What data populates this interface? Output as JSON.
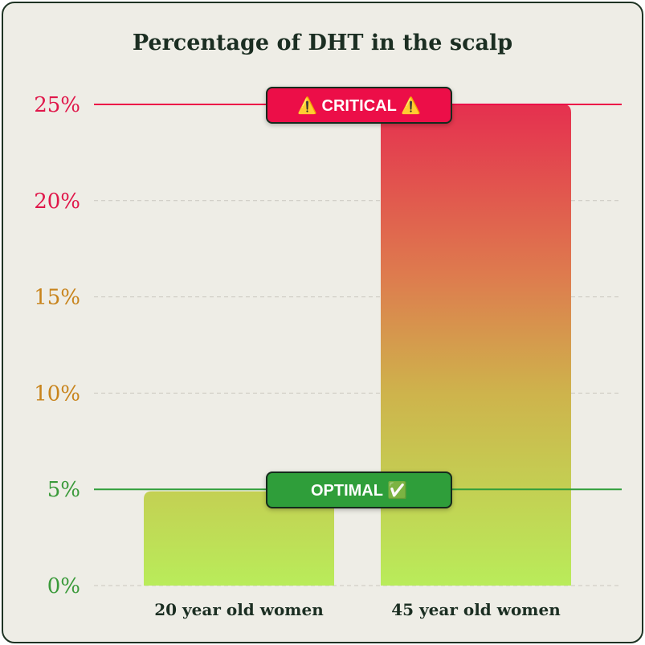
{
  "chart_data": {
    "type": "bar",
    "title": "Percentage of DHT in the scalp",
    "categories": [
      "20 year old women",
      "45 year old women"
    ],
    "values": [
      4.9,
      25
    ],
    "ylim": [
      0,
      25
    ],
    "yticks": [
      {
        "value": 0,
        "label": "0%",
        "color": "#3a9a3a"
      },
      {
        "value": 5,
        "label": "5%",
        "color": "#3a9a3a"
      },
      {
        "value": 10,
        "label": "10%",
        "color": "#c8841c"
      },
      {
        "value": 15,
        "label": "15%",
        "color": "#c8841c"
      },
      {
        "value": 20,
        "label": "20%",
        "color": "#e0174a"
      },
      {
        "value": 25,
        "label": "25%",
        "color": "#e0174a"
      }
    ],
    "grid": true,
    "thresholds": [
      {
        "value": 25,
        "label": "⚠️ CRITICAL ⚠️",
        "color": "#ec0e48"
      },
      {
        "value": 5,
        "label": "OPTIMAL ✅",
        "color": "#2f9e3a"
      }
    ]
  }
}
